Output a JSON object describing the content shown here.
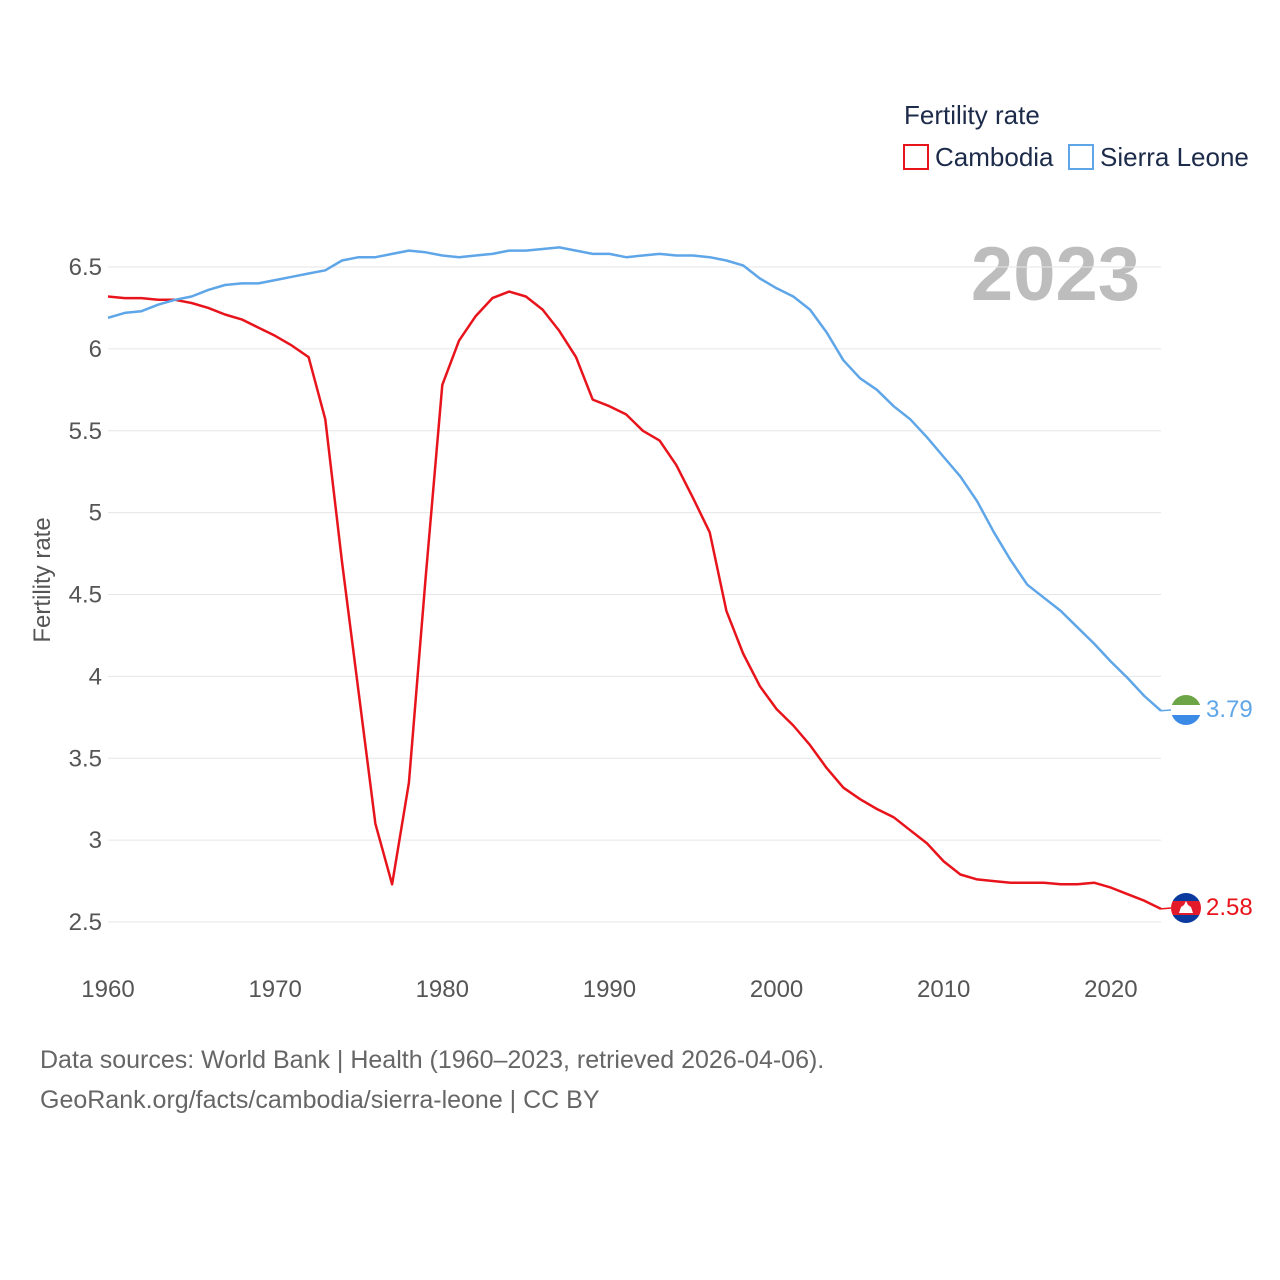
{
  "chart_data": {
    "type": "line",
    "legend_title": "Fertility rate",
    "ylabel": "Fertility rate",
    "year_label": "2023",
    "ylim": [
      2.5,
      6.5
    ],
    "xlim": [
      1960,
      2023
    ],
    "y_ticks": [
      {
        "value": 2.5,
        "label": "2.5"
      },
      {
        "value": 3,
        "label": "3"
      },
      {
        "value": 3.5,
        "label": "3.5"
      },
      {
        "value": 4,
        "label": "4"
      },
      {
        "value": 4.5,
        "label": "4.5"
      },
      {
        "value": 5,
        "label": "5"
      },
      {
        "value": 5.5,
        "label": "5.5"
      },
      {
        "value": 6,
        "label": "6"
      },
      {
        "value": 6.5,
        "label": "6.5"
      }
    ],
    "x_ticks": [
      {
        "value": 1960,
        "label": "1960"
      },
      {
        "value": 1970,
        "label": "1970"
      },
      {
        "value": 1980,
        "label": "1980"
      },
      {
        "value": 1990,
        "label": "1990"
      },
      {
        "value": 2000,
        "label": "2000"
      },
      {
        "value": 2010,
        "label": "2010"
      },
      {
        "value": 2020,
        "label": "2020"
      }
    ],
    "series": [
      {
        "name": "Cambodia",
        "color": "#e8141c",
        "end_label": "2.58",
        "x": [
          1960,
          1961,
          1962,
          1963,
          1964,
          1965,
          1966,
          1967,
          1968,
          1969,
          1970,
          1971,
          1972,
          1973,
          1974,
          1975,
          1976,
          1977,
          1978,
          1979,
          1980,
          1981,
          1982,
          1983,
          1984,
          1985,
          1986,
          1987,
          1988,
          1989,
          1990,
          1991,
          1992,
          1993,
          1994,
          1995,
          1996,
          1997,
          1998,
          1999,
          2000,
          2001,
          2002,
          2003,
          2004,
          2005,
          2006,
          2007,
          2008,
          2009,
          2010,
          2011,
          2012,
          2013,
          2014,
          2015,
          2016,
          2017,
          2018,
          2019,
          2020,
          2021,
          2022,
          2023
        ],
        "values": [
          6.32,
          6.31,
          6.31,
          6.3,
          6.3,
          6.28,
          6.25,
          6.21,
          6.18,
          6.13,
          6.08,
          6.02,
          5.95,
          5.57,
          4.7,
          3.9,
          3.1,
          2.73,
          3.35,
          4.6,
          5.78,
          6.05,
          6.2,
          6.31,
          6.35,
          6.32,
          6.24,
          6.11,
          5.95,
          5.69,
          5.65,
          5.6,
          5.5,
          5.44,
          5.29,
          5.09,
          4.88,
          4.4,
          4.14,
          3.94,
          3.8,
          3.7,
          3.58,
          3.44,
          3.32,
          3.25,
          3.19,
          3.14,
          3.06,
          2.98,
          2.87,
          2.79,
          2.76,
          2.75,
          2.74,
          2.74,
          2.74,
          2.73,
          2.73,
          2.74,
          2.71,
          2.67,
          2.63,
          2.58
        ]
      },
      {
        "name": "Sierra Leone",
        "color": "#5ea6e8",
        "end_label": "3.79",
        "x": [
          1960,
          1961,
          1962,
          1963,
          1964,
          1965,
          1966,
          1967,
          1968,
          1969,
          1970,
          1971,
          1972,
          1973,
          1974,
          1975,
          1976,
          1977,
          1978,
          1979,
          1980,
          1981,
          1982,
          1983,
          1984,
          1985,
          1986,
          1987,
          1988,
          1989,
          1990,
          1991,
          1992,
          1993,
          1994,
          1995,
          1996,
          1997,
          1998,
          1999,
          2000,
          2001,
          2002,
          2003,
          2004,
          2005,
          2006,
          2007,
          2008,
          2009,
          2010,
          2011,
          2012,
          2013,
          2014,
          2015,
          2016,
          2017,
          2018,
          2019,
          2020,
          2021,
          2022,
          2023
        ],
        "values": [
          6.19,
          6.22,
          6.23,
          6.27,
          6.3,
          6.32,
          6.36,
          6.39,
          6.4,
          6.4,
          6.42,
          6.44,
          6.46,
          6.48,
          6.54,
          6.56,
          6.56,
          6.58,
          6.6,
          6.59,
          6.57,
          6.56,
          6.57,
          6.58,
          6.6,
          6.6,
          6.61,
          6.62,
          6.6,
          6.58,
          6.58,
          6.56,
          6.57,
          6.58,
          6.57,
          6.57,
          6.56,
          6.54,
          6.51,
          6.43,
          6.37,
          6.32,
          6.24,
          6.1,
          5.93,
          5.82,
          5.75,
          5.65,
          5.57,
          5.46,
          5.34,
          5.22,
          5.07,
          4.88,
          4.71,
          4.56,
          4.48,
          4.4,
          4.3,
          4.2,
          4.09,
          3.99,
          3.88,
          3.79
        ]
      }
    ]
  },
  "footer": {
    "line1": "Data sources: World Bank | Health (1960–2023, retrieved 2026-04-06).",
    "line2": "GeoRank.org/facts/cambodia/sierra-leone | CC BY"
  },
  "icons": {
    "cambodia_flag": "cambodia-flag-icon",
    "sierra_leone_flag": "sierra-leone-flag-icon"
  }
}
